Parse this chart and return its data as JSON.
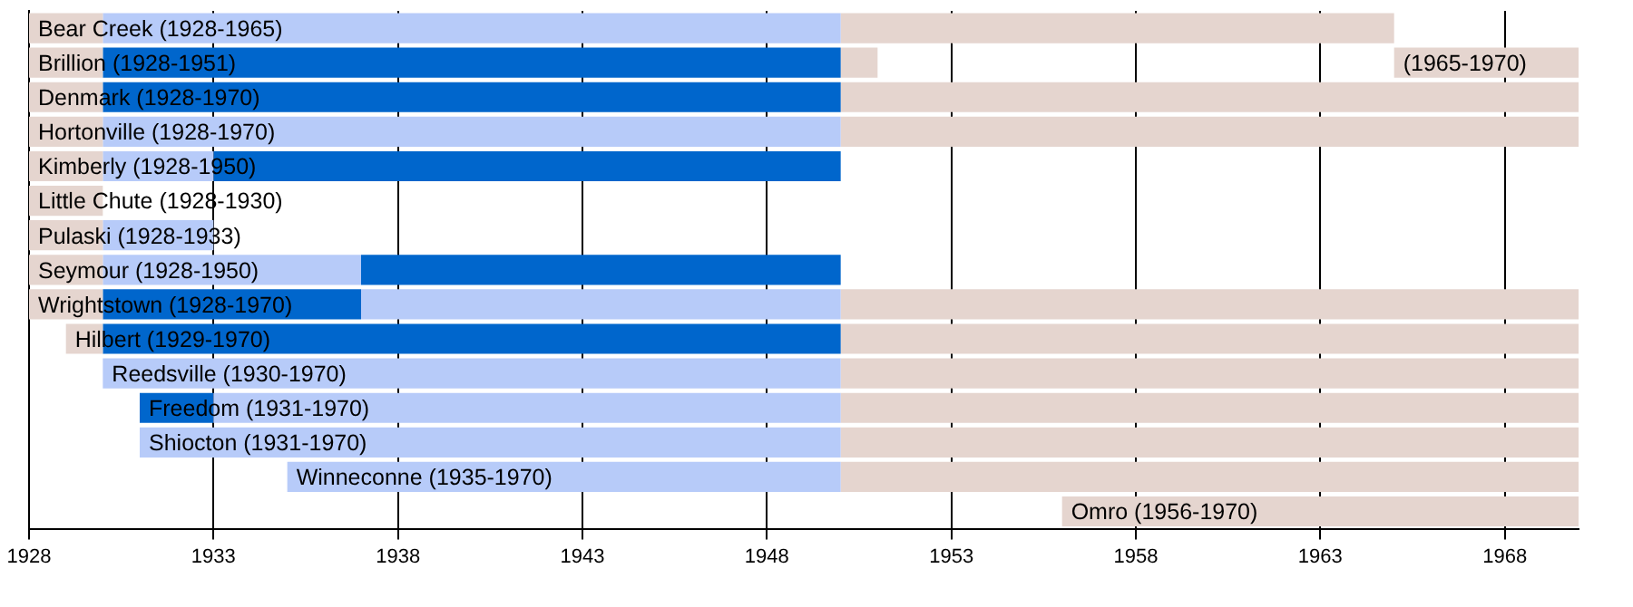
{
  "chart_data": {
    "type": "bar",
    "orientation": "horizontal",
    "categories": [
      "Bear Creek (1928-1965)",
      "Brillion (1928-1951)",
      "Denmark (1928-1970)",
      "Hortonville (1928-1970)",
      "Kimberly (1928-1950)",
      "Little Chute (1928-1930)",
      "Pulaski (1928-1933)",
      "Seymour (1928-1950)",
      "Wrightstown (1928-1970)",
      "Hilbert (1929-1970)",
      "Reedsville (1930-1970)",
      "Freedom (1931-1970)",
      "Shiocton (1931-1970)",
      "Winneconne (1935-1970)",
      "Omro (1956-1970)"
    ],
    "series": [
      {
        "color": "#e5d5cf",
        "base": [
          1928,
          1928,
          1928,
          1928,
          1928,
          1928,
          1928,
          1928,
          1928,
          1929,
          null,
          null,
          null,
          null,
          null
        ],
        "values": [
          2,
          2,
          2,
          2,
          2,
          2,
          2,
          2,
          2,
          1,
          null,
          null,
          null,
          null,
          null
        ]
      },
      {
        "color": "#b7cbf9",
        "base": [
          1930,
          null,
          null,
          1930,
          1930,
          null,
          1930,
          1930,
          1937,
          null,
          1930,
          1933,
          1931,
          1935,
          null
        ],
        "values": [
          20,
          null,
          null,
          20,
          3,
          null,
          3,
          7,
          13,
          null,
          20,
          17,
          19,
          15,
          null
        ]
      },
      {
        "color": "#0066cc",
        "base": [
          null,
          1930,
          1930,
          null,
          1933,
          null,
          null,
          1937,
          1930,
          1930,
          null,
          1931,
          null,
          null,
          null
        ],
        "values": [
          null,
          20,
          20,
          null,
          17,
          null,
          null,
          13,
          7,
          20,
          null,
          2,
          null,
          null,
          null
        ]
      },
      {
        "color": "#e5d5cf",
        "base": [
          1950,
          1950,
          1950,
          1950,
          null,
          null,
          null,
          null,
          1950,
          1950,
          1950,
          1950,
          1950,
          1950,
          1956
        ],
        "values": [
          15,
          1,
          20,
          20,
          null,
          null,
          null,
          null,
          20,
          20,
          20,
          20,
          20,
          20,
          14
        ]
      },
      {
        "color": "#e5d5cf",
        "base": [
          null,
          1965,
          null,
          null,
          null,
          null,
          null,
          null,
          null,
          null,
          null,
          null,
          null,
          null,
          null
        ],
        "values": [
          null,
          5,
          null,
          null,
          null,
          null,
          null,
          null,
          null,
          null,
          null,
          null,
          null,
          null,
          null
        ]
      }
    ],
    "annotations": [
      {
        "text": "(1965-1970)",
        "x": 1965,
        "y": "Brillion (1928-1951)"
      }
    ],
    "xlim": [
      1928,
      1970
    ],
    "xticks": [
      1928,
      1933,
      1938,
      1943,
      1948,
      1953,
      1958,
      1963,
      1968
    ],
    "grid": "x",
    "tick_labels": "x",
    "legend": false
  }
}
